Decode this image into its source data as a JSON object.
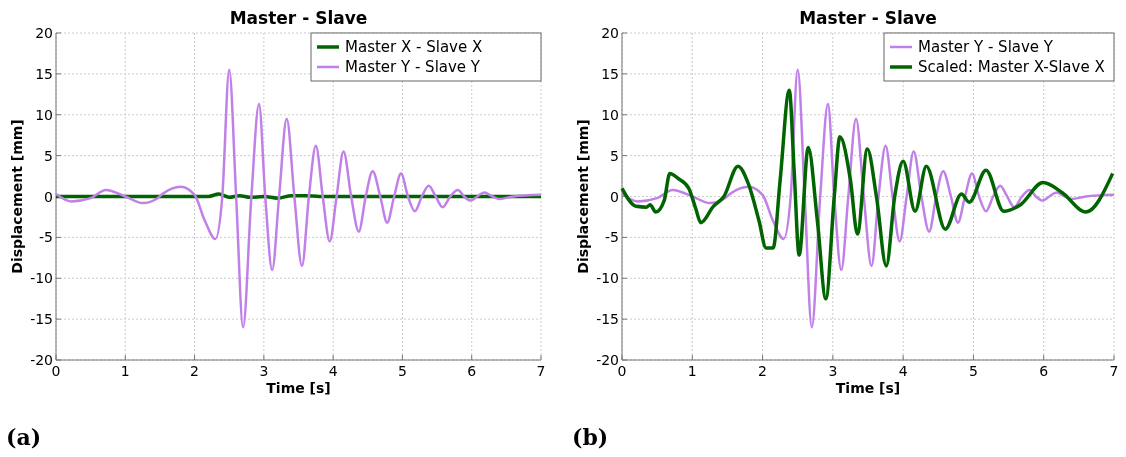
{
  "chart_data": [
    {
      "type": "line",
      "title": "Master - Slave",
      "xlabel": "Time [s]",
      "ylabel": "Displacement [mm]",
      "xlim": [
        0,
        7
      ],
      "ylim": [
        -20,
        20
      ],
      "xticks": [
        0,
        1,
        2,
        3,
        4,
        5,
        6,
        7
      ],
      "yticks": [
        -20,
        -15,
        -10,
        -5,
        0,
        5,
        10,
        15,
        20
      ],
      "grid": true,
      "legend": "top right",
      "annotations": [
        "(a)"
      ],
      "series": [
        {
          "name": "Master X - Slave X",
          "color": "#006400",
          "x": [
            0,
            0.5,
            1,
            1.5,
            2,
            2.2,
            2.35,
            2.5,
            2.65,
            2.8,
            3,
            3.2,
            3.4,
            3.6,
            3.8,
            4,
            4.5,
            5,
            5.5,
            6,
            6.5,
            7
          ],
          "values": [
            0,
            0,
            0,
            0,
            0,
            0,
            0.3,
            -0.1,
            0.1,
            -0.1,
            0,
            -0.2,
            0.1,
            0.1,
            0,
            0,
            0,
            0,
            0,
            0,
            0,
            0
          ]
        },
        {
          "name": "Master Y - Slave Y",
          "color": "#c080e8",
          "x": [
            0,
            0.22,
            0.5,
            0.72,
            1,
            1.25,
            1.45,
            1.55,
            1.8,
            2,
            2.15,
            2.3,
            2.4,
            2.5,
            2.6,
            2.7,
            2.82,
            2.93,
            3.02,
            3.12,
            3.22,
            3.33,
            3.44,
            3.55,
            3.65,
            3.75,
            3.85,
            3.95,
            4.05,
            4.15,
            4.26,
            4.37,
            4.47,
            4.57,
            4.68,
            4.78,
            4.88,
            4.98,
            5.08,
            5.18,
            5.28,
            5.38,
            5.48,
            5.58,
            5.69,
            5.8,
            5.89,
            5.98,
            6.08,
            6.18,
            6.3,
            6.4,
            6.6,
            7
          ],
          "values": [
            0.3,
            -0.6,
            -0.2,
            0.8,
            0,
            -0.8,
            -0.3,
            0.4,
            1.2,
            0.2,
            -3,
            -5.2,
            0,
            15.5,
            0,
            -16,
            0,
            11.3,
            0,
            -9,
            0,
            9.5,
            0,
            -8.5,
            0,
            6.2,
            0,
            -5.5,
            0,
            5.5,
            0,
            -4.3,
            0,
            3.1,
            0,
            -3.2,
            0,
            2.8,
            0,
            -1.8,
            0,
            1.3,
            0,
            -1.3,
            0,
            0.8,
            0,
            -0.5,
            0,
            0.5,
            0,
            -0.3,
            0,
            0.2
          ]
        }
      ]
    },
    {
      "type": "line",
      "title": "Master - Slave",
      "xlabel": "Time [s]",
      "ylabel": "Displacement [mm]",
      "xlim": [
        0,
        7
      ],
      "ylim": [
        -20,
        20
      ],
      "xticks": [
        0,
        1,
        2,
        3,
        4,
        5,
        6,
        7
      ],
      "yticks": [
        -20,
        -15,
        -10,
        -5,
        0,
        5,
        10,
        15,
        20
      ],
      "grid": true,
      "legend": "top right",
      "annotations": [
        "(b)"
      ],
      "series": [
        {
          "name": "Master Y - Slave Y",
          "color": "#c080e8",
          "x": [
            0,
            0.22,
            0.5,
            0.72,
            1,
            1.25,
            1.45,
            1.55,
            1.8,
            2,
            2.15,
            2.3,
            2.4,
            2.5,
            2.6,
            2.7,
            2.82,
            2.93,
            3.02,
            3.12,
            3.22,
            3.33,
            3.44,
            3.55,
            3.65,
            3.75,
            3.85,
            3.95,
            4.05,
            4.15,
            4.26,
            4.37,
            4.47,
            4.57,
            4.68,
            4.78,
            4.88,
            4.98,
            5.08,
            5.18,
            5.28,
            5.38,
            5.48,
            5.58,
            5.69,
            5.8,
            5.89,
            5.98,
            6.08,
            6.18,
            6.3,
            6.4,
            6.6,
            7
          ],
          "values": [
            0.3,
            -0.6,
            -0.2,
            0.8,
            0,
            -0.8,
            -0.3,
            0.4,
            1.2,
            0.2,
            -3,
            -5.2,
            0,
            15.5,
            0,
            -16,
            0,
            11.3,
            0,
            -9,
            0,
            9.5,
            0,
            -8.5,
            0,
            6.2,
            0,
            -5.5,
            0,
            5.5,
            0,
            -4.3,
            0,
            3.1,
            0,
            -3.2,
            0,
            2.8,
            0,
            -1.8,
            0,
            1.3,
            0,
            -1.3,
            0,
            0.8,
            0,
            -0.5,
            0,
            0.5,
            0,
            -0.3,
            0,
            0.2
          ]
        },
        {
          "name": "Scaled: Master X-Slave X",
          "color": "#006400",
          "x": [
            0,
            0.2,
            0.35,
            0.4,
            0.48,
            0.6,
            0.68,
            0.8,
            0.95,
            1.05,
            1.12,
            1.3,
            1.45,
            1.65,
            1.8,
            1.95,
            2.05,
            2.15,
            2.25,
            2.38,
            2.45,
            2.52,
            2.65,
            2.78,
            2.9,
            3.02,
            3.1,
            3.25,
            3.35,
            3.49,
            3.62,
            3.76,
            3.88,
            4,
            4.17,
            4.33,
            4.6,
            4.83,
            4.94,
            5.18,
            5.43,
            5.67,
            5.99,
            6.26,
            6.6,
            6.98
          ],
          "values": [
            1,
            -1.2,
            -1.3,
            -1,
            -1.9,
            -0.5,
            2.8,
            2.2,
            1,
            -1.5,
            -3.2,
            -1.2,
            0,
            3.7,
            1.5,
            -3,
            -6.3,
            -6.3,
            2,
            13,
            3,
            -7.2,
            6,
            -3,
            -12.5,
            0,
            7.3,
            2,
            -4.6,
            5.8,
            0,
            -8.5,
            0,
            4.3,
            -1.8,
            3.7,
            -4,
            0.3,
            -0.7,
            3.2,
            -1.8,
            -1,
            1.7,
            0.5,
            -1.9,
            2.8
          ]
        }
      ]
    }
  ]
}
